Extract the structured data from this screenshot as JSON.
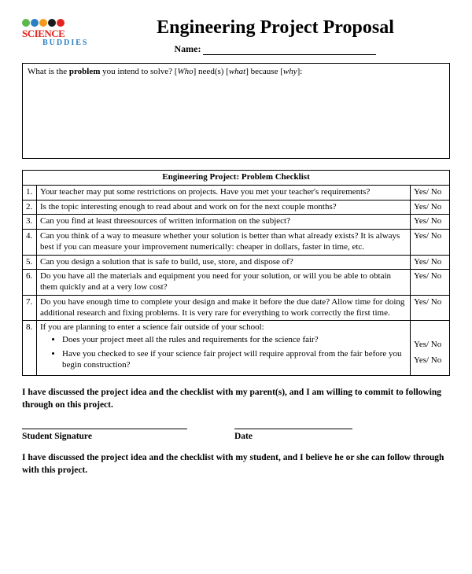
{
  "logo": {
    "dot_colors": [
      "#5bb84a",
      "#2b7fc3",
      "#f59a1b",
      "#1a1a1a",
      "#e2261f"
    ],
    "line1": "SCIENCE",
    "line1_color": "#e2261f",
    "line2": "BUDDIES",
    "line2_color": "#2b7fc3"
  },
  "title": "Engineering Project Proposal",
  "name_label": "Name:",
  "problem_prompt": {
    "pre": "What is the ",
    "bold": "problem",
    "post": " you intend to solve?  [",
    "i1": "Who",
    "mid1": "] need(s) [",
    "i2": "what",
    "mid2": "] because [",
    "i3": "why",
    "end": "]:"
  },
  "checklist_header": "Engineering Project:  Problem Checklist",
  "yes_no": "Yes/ No",
  "rows": [
    {
      "n": "1.",
      "q": "Your teacher may put some restrictions on projects.  Have you met your teacher's requirements?"
    },
    {
      "n": "2.",
      "q": "Is the topic interesting enough to read about and work on for the next couple months?"
    },
    {
      "n": "3.",
      "q": "Can you find at least threesources of written information on the subject?"
    },
    {
      "n": "4.",
      "q": "Can you think of a way to measure whether your solution is better than what already exists?  It is always best if you can measure your improvement numerically:  cheaper in dollars, faster in time, etc."
    },
    {
      "n": "5.",
      "q": "Can you design a solution that is safe to build, use, store, and dispose of?"
    },
    {
      "n": "6.",
      "q": "Do you have all the materials and equipment you need for your solution, or will you be able to obtain them quickly and at a very low cost?"
    },
    {
      "n": "7.",
      "q": "Do you have enough time to complete your design and make it before the due date?  Allow time for doing additional research and fixing problems.  It is very rare for everything to work correctly the first time."
    }
  ],
  "row8": {
    "n": "8.",
    "lead": "If you are planning to enter a science fair outside of your school:",
    "b1": "Does your project meet all the rules and requirements for the science fair?",
    "b2": "Have you checked to see if your science fair project will require approval from the fair before you begin construction?"
  },
  "commit_student": "I have discussed the project idea and the checklist with my parent(s), and I am willing to commit to following through on this project.",
  "sig_student_label": "Student Signature",
  "sig_date_label": "Date",
  "commit_parent": "I have discussed the project idea and the checklist with my student, and I believe he or she can follow through with this project."
}
